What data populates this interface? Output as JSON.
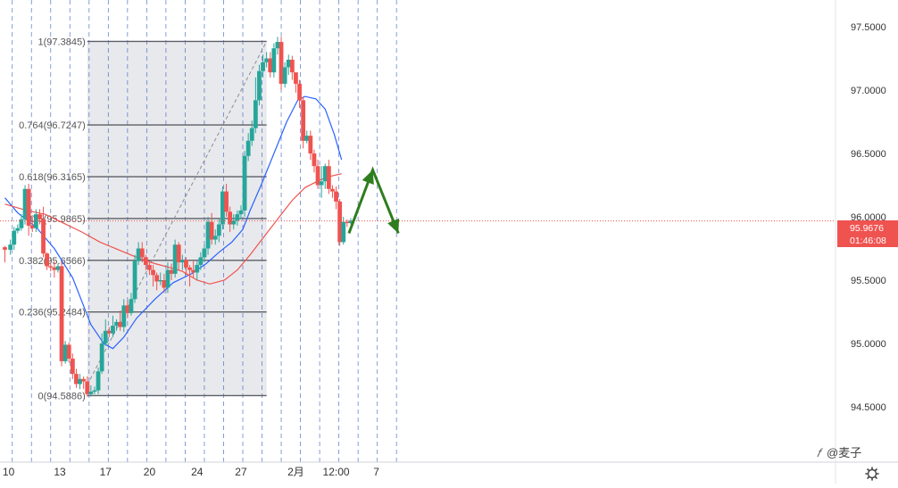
{
  "chart_data": {
    "type": "candlestick",
    "symbol_price_unit": "",
    "y_axis": {
      "ticks": [
        97.5,
        97.0,
        96.5,
        96.0,
        95.5,
        95.0,
        94.5
      ],
      "tick_labels": [
        "97.5000",
        "97.0000",
        "96.5000",
        "96.0000",
        "95.5000",
        "95.0000",
        "94.5000"
      ],
      "ylim": [
        94.22,
        97.75
      ]
    },
    "x_axis": {
      "tick_labels": [
        "10",
        "13",
        "17",
        "20",
        "24",
        "27",
        "2月",
        "12:00",
        "7"
      ],
      "tick_bar_index": [
        0,
        28,
        53,
        77,
        103,
        127,
        157,
        179,
        201
      ]
    },
    "current_price": {
      "value": 95.9676,
      "label": "95.9676",
      "countdown": "01:46:08",
      "color": "#ef5350"
    },
    "fibonacci": {
      "start_bar": 43,
      "end_bar": 141,
      "levels": [
        {
          "ratio": "1",
          "price": 97.3845,
          "label": "1(97.3845)"
        },
        {
          "ratio": "0.764",
          "price": 96.7247,
          "label": "0.764(96.7247)"
        },
        {
          "ratio": "0.618",
          "price": 96.3165,
          "label": "0.618(96.3165)"
        },
        {
          "ratio": "0.5",
          "price": 95.9865,
          "label": "0.5(95.9865)"
        },
        {
          "ratio": "0.382",
          "price": 95.6566,
          "label": "0.382(95.6566)"
        },
        {
          "ratio": "0.236",
          "price": 95.2484,
          "label": "0.236(95.2484)"
        },
        {
          "ratio": "0",
          "price": 94.5886,
          "label": "0(94.5886)"
        }
      ]
    },
    "moving_averages": [
      {
        "color": "#2962ff",
        "points": [
          [
            -2,
            96.15
          ],
          [
            5,
            96.03
          ],
          [
            15,
            95.92
          ],
          [
            25,
            95.75
          ],
          [
            35,
            95.52
          ],
          [
            45,
            95.15
          ],
          [
            52,
            95.0
          ],
          [
            57,
            94.96
          ],
          [
            63,
            95.05
          ],
          [
            70,
            95.2
          ],
          [
            80,
            95.35
          ],
          [
            90,
            95.48
          ],
          [
            100,
            95.55
          ],
          [
            108,
            95.63
          ],
          [
            115,
            95.72
          ],
          [
            122,
            95.8
          ],
          [
            128,
            95.9
          ],
          [
            132,
            96.05
          ],
          [
            138,
            96.25
          ],
          [
            145,
            96.5
          ],
          [
            152,
            96.75
          ],
          [
            158,
            96.92
          ],
          [
            162,
            96.95
          ],
          [
            168,
            96.93
          ],
          [
            173,
            96.85
          ],
          [
            178,
            96.65
          ],
          [
            182,
            96.45
          ]
        ]
      },
      {
        "color": "#ef5350",
        "points": [
          [
            -2,
            96.1
          ],
          [
            10,
            96.05
          ],
          [
            20,
            96.02
          ],
          [
            30,
            95.95
          ],
          [
            40,
            95.88
          ],
          [
            50,
            95.8
          ],
          [
            60,
            95.74
          ],
          [
            70,
            95.68
          ],
          [
            80,
            95.63
          ],
          [
            88,
            95.6
          ],
          [
            95,
            95.57
          ],
          [
            103,
            95.5
          ],
          [
            110,
            95.47
          ],
          [
            118,
            95.5
          ],
          [
            125,
            95.58
          ],
          [
            132,
            95.7
          ],
          [
            140,
            95.85
          ],
          [
            148,
            96.0
          ],
          [
            155,
            96.13
          ],
          [
            162,
            96.23
          ],
          [
            170,
            96.29
          ],
          [
            176,
            96.32
          ],
          [
            182,
            96.34
          ]
        ]
      }
    ],
    "candles": [
      [
        -2,
        95.76,
        95.74,
        95.64,
        95.77
      ],
      [
        1,
        95.74,
        95.78,
        95.7,
        95.82
      ],
      [
        3,
        95.78,
        95.89,
        95.74,
        95.92
      ],
      [
        5,
        95.89,
        95.91,
        95.87,
        95.94
      ],
      [
        7,
        95.91,
        95.98,
        95.89,
        96.02
      ],
      [
        9,
        95.98,
        96.22,
        95.94,
        96.25
      ],
      [
        11,
        96.22,
        95.93,
        95.85,
        96.26
      ],
      [
        13,
        95.93,
        95.91,
        95.88,
        96.0
      ],
      [
        15,
        95.91,
        96.02,
        95.88,
        96.06
      ],
      [
        17,
        96.02,
        95.98,
        95.94,
        96.06
      ],
      [
        19,
        95.98,
        95.71,
        95.68,
        96.08
      ],
      [
        21,
        95.71,
        95.61,
        95.58,
        95.72
      ],
      [
        23,
        95.61,
        95.6,
        95.57,
        95.63
      ],
      [
        25,
        95.6,
        95.58,
        95.52,
        95.65
      ],
      [
        27,
        95.58,
        95.61,
        95.56,
        95.63
      ],
      [
        29,
        95.61,
        94.86,
        94.82,
        95.65
      ],
      [
        31,
        94.86,
        94.99,
        94.84,
        95.02
      ],
      [
        33,
        94.99,
        94.88,
        94.85,
        95.01
      ],
      [
        35,
        94.88,
        94.76,
        94.72,
        94.92
      ],
      [
        37,
        94.76,
        94.68,
        94.65,
        94.8
      ],
      [
        39,
        94.68,
        94.72,
        94.64,
        94.76
      ],
      [
        41,
        94.72,
        94.7,
        94.64,
        94.74
      ],
      [
        43,
        94.7,
        94.6,
        94.58,
        94.74
      ],
      [
        45,
        94.6,
        94.62,
        94.58,
        94.67
      ],
      [
        47,
        94.62,
        94.63,
        94.6,
        94.66
      ],
      [
        49,
        94.63,
        94.78,
        94.6,
        94.81
      ],
      [
        51,
        94.78,
        95.0,
        94.76,
        95.08
      ],
      [
        53,
        95.0,
        95.1,
        94.98,
        95.19
      ],
      [
        55,
        95.1,
        95.08,
        95.05,
        95.13
      ],
      [
        57,
        95.08,
        95.14,
        95.05,
        95.22
      ],
      [
        59,
        95.14,
        95.17,
        95.1,
        95.19
      ],
      [
        61,
        95.17,
        95.13,
        95.1,
        95.26
      ],
      [
        63,
        95.13,
        95.3,
        95.09,
        95.35
      ],
      [
        65,
        95.3,
        95.24,
        95.2,
        95.34
      ],
      [
        67,
        95.24,
        95.35,
        95.22,
        95.4
      ],
      [
        69,
        95.35,
        95.65,
        95.32,
        95.7
      ],
      [
        71,
        95.65,
        95.75,
        95.62,
        95.8
      ],
      [
        73,
        95.75,
        95.68,
        95.64,
        95.8
      ],
      [
        75,
        95.68,
        95.62,
        95.58,
        95.7
      ],
      [
        77,
        95.62,
        95.58,
        95.54,
        95.64
      ],
      [
        79,
        95.58,
        95.54,
        95.45,
        95.62
      ],
      [
        81,
        95.54,
        95.49,
        95.42,
        95.56
      ],
      [
        83,
        95.49,
        95.5,
        95.46,
        95.56
      ],
      [
        85,
        95.5,
        95.44,
        95.4,
        95.55
      ],
      [
        87,
        95.44,
        95.58,
        95.4,
        95.64
      ],
      [
        89,
        95.58,
        95.55,
        95.5,
        95.63
      ],
      [
        91,
        95.55,
        95.78,
        95.52,
        95.82
      ],
      [
        93,
        95.78,
        95.64,
        95.58,
        95.8
      ],
      [
        95,
        95.64,
        95.66,
        95.58,
        95.7
      ],
      [
        97,
        95.66,
        95.6,
        95.54,
        95.68
      ],
      [
        99,
        95.6,
        95.58,
        95.45,
        95.62
      ],
      [
        101,
        95.58,
        95.56,
        95.52,
        95.65
      ],
      [
        103,
        95.56,
        95.62,
        95.5,
        95.65
      ],
      [
        105,
        95.62,
        95.68,
        95.58,
        95.72
      ],
      [
        107,
        95.68,
        95.75,
        95.64,
        95.78
      ],
      [
        109,
        95.75,
        95.96,
        95.7,
        96.0
      ],
      [
        111,
        95.96,
        95.82,
        95.78,
        96.03
      ],
      [
        113,
        95.82,
        95.85,
        95.78,
        95.9
      ],
      [
        115,
        95.85,
        95.94,
        95.8,
        95.98
      ],
      [
        117,
        95.94,
        96.2,
        95.9,
        96.24
      ],
      [
        119,
        96.2,
        96.04,
        96.0,
        96.26
      ],
      [
        121,
        96.04,
        95.94,
        95.88,
        96.08
      ],
      [
        123,
        95.94,
        95.97,
        95.9,
        96.02
      ],
      [
        125,
        95.97,
        96.02,
        95.93,
        96.05
      ],
      [
        127,
        96.02,
        96.05,
        95.98,
        96.09
      ],
      [
        129,
        96.05,
        96.48,
        96.0,
        96.52
      ],
      [
        131,
        96.48,
        96.6,
        96.44,
        96.66
      ],
      [
        133,
        96.6,
        96.7,
        96.56,
        96.76
      ],
      [
        135,
        96.7,
        96.92,
        96.66,
        97.1
      ],
      [
        137,
        96.92,
        97.15,
        96.88,
        97.2
      ],
      [
        139,
        97.15,
        97.22,
        97.1,
        97.28
      ],
      [
        141,
        97.22,
        97.25,
        97.18,
        97.3
      ],
      [
        143,
        97.25,
        97.14,
        97.1,
        97.3
      ],
      [
        145,
        97.14,
        97.33,
        97.1,
        97.37
      ],
      [
        147,
        97.33,
        97.38,
        97.28,
        97.42
      ],
      [
        149,
        97.38,
        97.05,
        97.0,
        97.42
      ],
      [
        151,
        97.05,
        97.18,
        97.02,
        97.22
      ],
      [
        153,
        97.18,
        97.24,
        97.12,
        97.28
      ],
      [
        155,
        97.24,
        97.14,
        97.08,
        97.27
      ],
      [
        157,
        97.14,
        97.05,
        96.98,
        97.14
      ],
      [
        159,
        97.05,
        96.92,
        96.86,
        97.08
      ],
      [
        161,
        96.92,
        96.6,
        96.54,
        96.95
      ],
      [
        163,
        96.6,
        96.64,
        96.58,
        96.68
      ],
      [
        165,
        96.64,
        96.5,
        96.45,
        96.68
      ],
      [
        167,
        96.5,
        96.4,
        96.35,
        96.53
      ],
      [
        169,
        96.4,
        96.25,
        96.22,
        96.45
      ],
      [
        171,
        96.25,
        96.28,
        96.15,
        96.4
      ],
      [
        173,
        96.28,
        96.4,
        96.22,
        96.42
      ],
      [
        175,
        96.4,
        96.22,
        96.18,
        96.45
      ],
      [
        177,
        96.22,
        96.2,
        96.15,
        96.25
      ],
      [
        179,
        96.2,
        96.12,
        96.06,
        96.24
      ],
      [
        181,
        96.12,
        95.8,
        95.77,
        96.14
      ],
      [
        183,
        95.8,
        95.96,
        95.78,
        96.0
      ],
      [
        185,
        95.96,
        95.95,
        95.92,
        95.98
      ],
      [
        187,
        95.95,
        95.97,
        95.94,
        95.99
      ]
    ],
    "projection_arrow": {
      "color": "#2e7d1e",
      "points": [
        [
          186,
          95.87
        ],
        [
          199,
          96.37
        ],
        [
          213,
          95.87
        ]
      ]
    },
    "colors": {
      "up": "#26a69a",
      "down": "#ef5350",
      "fib_fill": "#e8e9ec",
      "fib_line": "#5c5f66",
      "grid": "#2a52be"
    },
    "settings_icon": "gear-icon",
    "watermark": {
      "text": "@麦子",
      "logo": "zhihu-logo"
    }
  }
}
